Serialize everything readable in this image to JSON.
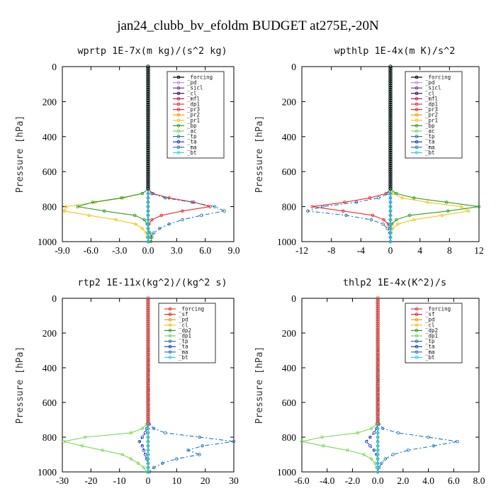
{
  "figure": {
    "title": "jan24_clubb_bv_efoldm  BUDGET at275E,-20N"
  },
  "chart_data": [
    {
      "type": "line",
      "title": "wprtp  1E-7x(m kg)/(s^2 kg)",
      "ylabel": "Pressure [hPa]",
      "xlim": [
        -9,
        9
      ],
      "ylim": [
        1000,
        0
      ],
      "xticks": [
        "-9.0",
        "-6.0",
        "-3.0",
        "0.0",
        "3.0",
        "6.0",
        "9.0"
      ],
      "yticks": [
        "0",
        "200",
        "400",
        "600",
        "800",
        "1000"
      ],
      "pressure": [
        700,
        725,
        750,
        775,
        800,
        825,
        850,
        875,
        900,
        925,
        950,
        975,
        1000
      ],
      "series": [
        {
          "name": "_forcing",
          "color": "#000000",
          "values": [
            0,
            0,
            0,
            0,
            0,
            0,
            0,
            0,
            0,
            0,
            0,
            0,
            0
          ]
        },
        {
          "name": "_pd",
          "color": "#b49ad8",
          "values": [
            0,
            0,
            0,
            0,
            0,
            0,
            0,
            0,
            0,
            0,
            0,
            0,
            0
          ]
        },
        {
          "name": "_sicl",
          "color": "#6a3d9a",
          "values": [
            0,
            0,
            0,
            0,
            0,
            0,
            0,
            0,
            0,
            0,
            0,
            0,
            0
          ]
        },
        {
          "name": "_cl",
          "color": "#3f0f3f",
          "values": [
            0,
            0,
            0,
            0,
            0,
            0,
            0,
            0,
            0,
            0,
            0,
            0,
            0
          ]
        },
        {
          "name": "_mfl",
          "color": "#c2185b",
          "values": [
            0,
            0,
            0,
            0,
            0,
            0,
            0,
            0,
            0,
            0,
            0,
            0,
            0
          ]
        },
        {
          "name": "_dp1",
          "color": "#e53935",
          "values": [
            0,
            0,
            0,
            0,
            0,
            0,
            0,
            0,
            0,
            0,
            0,
            0,
            0
          ]
        },
        {
          "name": "_pr3",
          "color": "#f0262f",
          "values": [
            0,
            0.5,
            2.2,
            4.8,
            6.5,
            3.6,
            1.4,
            0.4,
            0.1,
            0,
            0,
            0,
            0
          ]
        },
        {
          "name": "_pr2",
          "color": "#ff9800",
          "values": [
            0,
            0,
            0,
            0,
            0,
            0,
            0,
            0,
            0,
            0,
            0,
            0,
            0
          ]
        },
        {
          "name": "_pr1",
          "color": "#f5c518",
          "values": [
            0,
            -0.6,
            -2.6,
            -5.5,
            -8.6,
            -8.8,
            -6.2,
            -3.4,
            -1.3,
            -0.6,
            -0.2,
            -0.1,
            0
          ]
        },
        {
          "name": "_bp",
          "color": "#2e9e2e",
          "values": [
            0,
            -0.6,
            -2.8,
            -5.8,
            -7.4,
            -4.6,
            -1.4,
            -0.4,
            -0.1,
            0,
            0.2,
            0.4,
            0.3
          ]
        },
        {
          "name": "_ac",
          "color": "#7fd65a",
          "values": [
            0,
            0,
            0,
            0,
            0,
            0,
            0,
            0,
            0,
            0,
            0,
            0,
            0
          ]
        },
        {
          "name": "_tp",
          "color": "#1f78b4",
          "values": [
            0,
            0.4,
            1.8,
            4.6,
            7.0,
            8.0,
            5.6,
            3.6,
            2.2,
            1.2,
            0.6,
            0.2,
            0
          ]
        },
        {
          "name": "_ta",
          "color": "#1a3cc8",
          "values": [
            0,
            0,
            0,
            0,
            0,
            0,
            0,
            0,
            0,
            0,
            0,
            0,
            0
          ]
        },
        {
          "name": "_ma",
          "color": "#3a6fd8",
          "values": [
            0,
            0,
            0,
            0,
            0,
            0,
            0,
            0,
            0,
            0,
            0,
            0,
            0
          ]
        },
        {
          "name": "_bt",
          "color": "#2bd6e6",
          "values": [
            0,
            0,
            0,
            0,
            0,
            0,
            0,
            0,
            0,
            0,
            0,
            0,
            0
          ]
        }
      ]
    },
    {
      "type": "line",
      "title": "wpthlp  1E-4x(m K)/s^2",
      "ylabel": "Pressure [hPa]",
      "xlim": [
        -12,
        12
      ],
      "ylim": [
        1000,
        0
      ],
      "xticks": [
        "-12",
        "-8",
        "-4",
        "0",
        "4",
        "8",
        "12"
      ],
      "yticks": [
        "0",
        "200",
        "400",
        "600",
        "800",
        "1000"
      ],
      "pressure": [
        700,
        725,
        750,
        775,
        800,
        825,
        850,
        875,
        900,
        925,
        950,
        975,
        1000
      ],
      "series": [
        {
          "name": "_forcing",
          "color": "#000000",
          "values": [
            0,
            0,
            0,
            0,
            0,
            0,
            0,
            0,
            0,
            0,
            0,
            0,
            0
          ]
        },
        {
          "name": "_pd",
          "color": "#b49ad8",
          "values": [
            0,
            0,
            0,
            0,
            0,
            0,
            0,
            0,
            0,
            0,
            0,
            0,
            0
          ]
        },
        {
          "name": "_sicl",
          "color": "#6a3d9a",
          "values": [
            0,
            0,
            0,
            0,
            0,
            0,
            0,
            0,
            0,
            0,
            0,
            0,
            0
          ]
        },
        {
          "name": "_cl",
          "color": "#3f0f3f",
          "values": [
            0,
            0,
            0,
            0,
            0,
            0,
            0,
            0,
            0,
            0,
            0,
            0,
            0
          ]
        },
        {
          "name": "_mfl",
          "color": "#c2185b",
          "values": [
            0,
            0,
            0,
            0,
            0,
            0,
            0,
            0,
            0,
            0,
            0,
            0,
            0
          ]
        },
        {
          "name": "_dp1",
          "color": "#e53935",
          "values": [
            0,
            0,
            0,
            0,
            0,
            0,
            0,
            0,
            0,
            0,
            0,
            0,
            0
          ]
        },
        {
          "name": "_pr3",
          "color": "#f0262f",
          "values": [
            0,
            -0.6,
            -2.8,
            -6.2,
            -10.6,
            -6.4,
            -2.4,
            -0.9,
            -0.3,
            -0.1,
            0,
            0,
            0
          ]
        },
        {
          "name": "_pr2",
          "color": "#ff9800",
          "values": [
            0,
            0,
            0,
            0,
            0,
            0,
            0,
            0,
            0,
            0,
            0,
            0,
            0
          ]
        },
        {
          "name": "_pr1",
          "color": "#f5c518",
          "values": [
            0,
            0.4,
            1.6,
            5.0,
            9.6,
            10.6,
            7.0,
            3.2,
            1.0,
            0.3,
            0.1,
            0,
            0
          ]
        },
        {
          "name": "_bp",
          "color": "#2e9e2e",
          "values": [
            0,
            0.8,
            3.2,
            7.6,
            12.0,
            7.8,
            2.6,
            0.8,
            0.2,
            0,
            0,
            0,
            0
          ]
        },
        {
          "name": "_ac",
          "color": "#7fd65a",
          "values": [
            0,
            0,
            0,
            0,
            0,
            0,
            0,
            0,
            0,
            0,
            0,
            0,
            0
          ]
        },
        {
          "name": "_tp",
          "color": "#1f78b4",
          "values": [
            0,
            -0.3,
            -1.6,
            -4.6,
            -9.2,
            -11.2,
            -6.0,
            -2.6,
            -1.0,
            -0.4,
            -0.1,
            0,
            0
          ]
        },
        {
          "name": "_ta",
          "color": "#1a3cc8",
          "values": [
            0,
            0,
            0,
            0,
            0,
            0,
            0,
            0,
            0,
            0,
            0,
            0,
            0
          ]
        },
        {
          "name": "_ma",
          "color": "#3a6fd8",
          "values": [
            0,
            0,
            0,
            0,
            0,
            0,
            0,
            0,
            0,
            0,
            0,
            0,
            0
          ]
        },
        {
          "name": "_bt",
          "color": "#2bd6e6",
          "values": [
            0,
            0,
            0,
            0,
            0,
            0,
            0,
            0,
            0,
            0,
            0,
            0,
            0
          ]
        }
      ]
    },
    {
      "type": "line",
      "title": "rtp2  1E-11x(kg^2)/(kg^2 s)",
      "ylabel": "Pressure [hPa]",
      "xlim": [
        -30,
        30
      ],
      "ylim": [
        1000,
        0
      ],
      "xticks": [
        "-30",
        "-20",
        "-10",
        "0",
        "10",
        "20",
        "30"
      ],
      "yticks": [
        "0",
        "200",
        "400",
        "600",
        "800",
        "1000"
      ],
      "pressure": [
        725,
        750,
        775,
        800,
        825,
        850,
        875,
        900,
        925,
        950,
        975,
        1000
      ],
      "series": [
        {
          "name": "_forcing",
          "color": "#e53935",
          "values": [
            0,
            0,
            0,
            0,
            0,
            0,
            0,
            0,
            0,
            0,
            0,
            0
          ]
        },
        {
          "name": "_sf",
          "color": "#f0262f",
          "values": [
            0,
            0,
            0,
            0,
            0,
            0,
            0,
            0,
            0,
            0,
            0,
            0
          ]
        },
        {
          "name": "_pd",
          "color": "#ff9800",
          "values": [
            0,
            0,
            0,
            0,
            0,
            0,
            0,
            0,
            0,
            0,
            0,
            0
          ]
        },
        {
          "name": "_cl",
          "color": "#f5c518",
          "values": [
            0,
            0,
            0,
            0,
            0,
            0,
            0,
            0,
            0,
            0,
            0,
            0
          ]
        },
        {
          "name": "_dp2",
          "color": "#2e9e2e",
          "values": [
            0,
            0,
            0,
            0,
            0,
            0,
            0,
            0,
            0,
            0,
            0,
            0
          ]
        },
        {
          "name": "_dp1",
          "color": "#7fd65a",
          "values": [
            -0.5,
            -2.0,
            -6.0,
            -22.0,
            -29.5,
            -23.0,
            -16.0,
            -9.0,
            -6.0,
            -3.5,
            -1.5,
            -0.5
          ]
        },
        {
          "name": "_tp",
          "color": "#1f78b4",
          "values": [
            0.5,
            2.0,
            6.0,
            18.0,
            30.0,
            19.0,
            14.0,
            18.0,
            10.0,
            5.0,
            2.0,
            0.5
          ]
        },
        {
          "name": "_ta",
          "color": "#1a3cc8",
          "values": [
            0,
            -0.5,
            -1.0,
            -2.0,
            -3.0,
            -2.0,
            -1.5,
            -1.0,
            -0.5,
            0,
            0,
            0
          ]
        },
        {
          "name": "_ma",
          "color": "#3a6fd8",
          "values": [
            0,
            0,
            0,
            0,
            0,
            0,
            0,
            0,
            0,
            0,
            0,
            0
          ]
        },
        {
          "name": "_bt",
          "color": "#2bd6e6",
          "values": [
            0,
            0,
            0,
            0,
            0,
            0,
            0,
            0,
            0,
            0,
            0,
            0
          ]
        }
      ]
    },
    {
      "type": "line",
      "title": "thlp2  1E-4x(K^2)/s",
      "ylabel": "Pressure [hPa]",
      "xlim": [
        -6,
        8
      ],
      "ylim": [
        1000,
        0
      ],
      "xticks": [
        "-6.0",
        "-4.0",
        "-2.0",
        "0.0",
        "2.0",
        "4.0",
        "6.0",
        "8.0"
      ],
      "yticks": [
        "0",
        "200",
        "400",
        "600",
        "800",
        "1000"
      ],
      "pressure": [
        725,
        750,
        775,
        800,
        825,
        850,
        875,
        900,
        925,
        950,
        975,
        1000
      ],
      "series": [
        {
          "name": "_forcing",
          "color": "#e53935",
          "values": [
            0,
            0,
            0,
            0,
            0,
            0,
            0,
            0,
            0,
            0,
            0,
            0
          ]
        },
        {
          "name": "_sf",
          "color": "#f0262f",
          "values": [
            0,
            0,
            0,
            0,
            0,
            0,
            0,
            0,
            0,
            0,
            0,
            0
          ]
        },
        {
          "name": "_pd",
          "color": "#ff9800",
          "values": [
            0,
            0,
            0,
            0,
            0,
            0,
            0,
            0,
            0,
            0,
            0,
            0
          ]
        },
        {
          "name": "_cl",
          "color": "#f5c518",
          "values": [
            0,
            0,
            0,
            0,
            0,
            0,
            0,
            0,
            0,
            0,
            0,
            0
          ]
        },
        {
          "name": "_dp2",
          "color": "#2e9e2e",
          "values": [
            0,
            0,
            0,
            0,
            0,
            0,
            0,
            0,
            0,
            0,
            0,
            0
          ]
        },
        {
          "name": "_dp1",
          "color": "#7fd65a",
          "values": [
            -0.1,
            -0.5,
            -1.6,
            -4.4,
            -6.0,
            -4.3,
            -2.4,
            -1.1,
            -0.5,
            -0.2,
            -0.1,
            0
          ]
        },
        {
          "name": "_tp",
          "color": "#1f78b4",
          "values": [
            0.1,
            0.4,
            1.6,
            4.0,
            6.3,
            4.4,
            2.4,
            1.2,
            0.6,
            0.3,
            0.1,
            0
          ]
        },
        {
          "name": "_ta",
          "color": "#1a3cc8",
          "values": [
            0,
            -0.1,
            -0.3,
            -0.6,
            -0.9,
            -0.6,
            -0.3,
            -0.1,
            0,
            0,
            0,
            0
          ]
        },
        {
          "name": "_ma",
          "color": "#3a6fd8",
          "values": [
            0,
            0,
            0,
            0,
            0,
            0,
            0,
            0,
            0,
            0,
            0,
            0
          ]
        },
        {
          "name": "_bt",
          "color": "#2bd6e6",
          "values": [
            0,
            0,
            0,
            0,
            0,
            0,
            0,
            0,
            0,
            0,
            0,
            0
          ]
        }
      ]
    }
  ]
}
